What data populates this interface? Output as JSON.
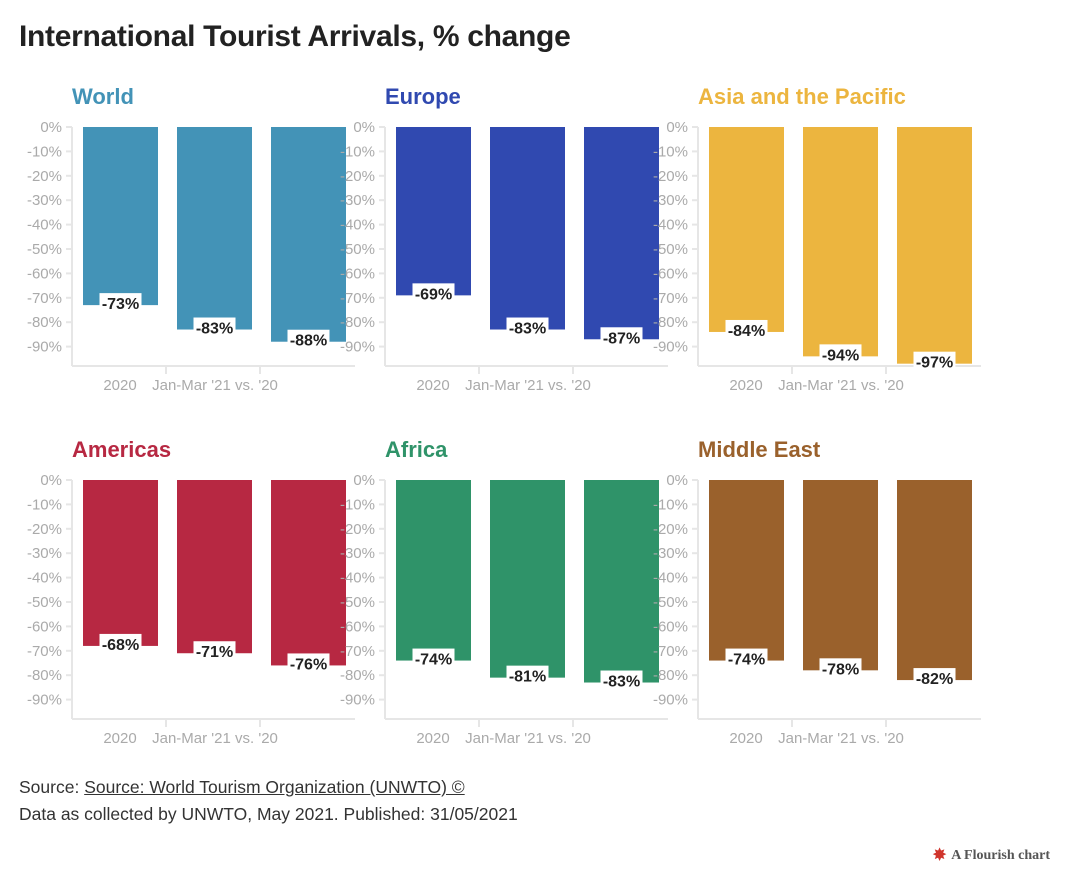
{
  "title": "International Tourist Arrivals, % change",
  "footer": {
    "source_prefix": "Source: ",
    "source_link": "Source: World Tourism Organization (UNWTO) ©",
    "note": "Data as collected by UNWTO, May 2021. Published: 31/05/2021"
  },
  "credit": {
    "icon": "flourish-logo-icon",
    "text": "A Flourish chart"
  },
  "colors": {
    "world": "#4393b7",
    "europe": "#3049b0",
    "asia_pacific": "#ecb53f",
    "americas": "#b72842",
    "africa": "#2f9369",
    "middle_east": "#9a612c",
    "axis_text": "#aaaaaa",
    "axis_line": "#e6e6e6",
    "label_bg": "#ffffff",
    "label_text": "#222222"
  },
  "chart_data": [
    {
      "type": "bar",
      "title": "World",
      "color_key": "world",
      "categories": [
        "2020",
        "Jan-Mar '21 vs. '20",
        ""
      ],
      "values": [
        -73,
        -83,
        -88
      ],
      "data_labels": [
        "-73%",
        "-83%",
        "-88%"
      ],
      "ylim": [
        -90,
        0
      ],
      "yticks": [
        "0%",
        "-10%",
        "-20%",
        "-30%",
        "-40%",
        "-50%",
        "-60%",
        "-70%",
        "-80%",
        "-90%"
      ],
      "grid": false
    },
    {
      "type": "bar",
      "title": "Europe",
      "color_key": "europe",
      "categories": [
        "2020",
        "Jan-Mar '21 vs. '20",
        ""
      ],
      "values": [
        -69,
        -83,
        -87
      ],
      "data_labels": [
        "-69%",
        "-83%",
        "-87%"
      ],
      "ylim": [
        -90,
        0
      ],
      "grid": false
    },
    {
      "type": "bar",
      "title": "Asia and the Pacific",
      "color_key": "asia_pacific",
      "categories": [
        "2020",
        "Jan-Mar '21 vs. '20",
        ""
      ],
      "values": [
        -84,
        -94,
        -97
      ],
      "data_labels": [
        "-84%",
        "-94%",
        "-97%"
      ],
      "ylim": [
        -90,
        0
      ],
      "grid": false
    },
    {
      "type": "bar",
      "title": "Americas",
      "color_key": "americas",
      "categories": [
        "2020",
        "Jan-Mar '21 vs. '20",
        ""
      ],
      "values": [
        -68,
        -71,
        -76
      ],
      "data_labels": [
        "-68%",
        "-71%",
        "-76%"
      ],
      "ylim": [
        -90,
        0
      ],
      "yticks": [
        "0%",
        "-10%",
        "-20%",
        "-30%",
        "-40%",
        "-50%",
        "-60%",
        "-70%",
        "-80%",
        "-90%"
      ],
      "grid": false
    },
    {
      "type": "bar",
      "title": "Africa",
      "color_key": "africa",
      "categories": [
        "2020",
        "Jan-Mar '21 vs. '20",
        ""
      ],
      "values": [
        -74,
        -81,
        -83
      ],
      "data_labels": [
        "-74%",
        "-81%",
        "-83%"
      ],
      "ylim": [
        -90,
        0
      ],
      "grid": false
    },
    {
      "type": "bar",
      "title": "Middle East",
      "color_key": "middle_east",
      "categories": [
        "2020",
        "Jan-Mar '21 vs. '20",
        ""
      ],
      "values": [
        -74,
        -78,
        -82
      ],
      "data_labels": [
        "-74%",
        "-78%",
        "-82%"
      ],
      "ylim": [
        -90,
        0
      ],
      "grid": false
    }
  ]
}
